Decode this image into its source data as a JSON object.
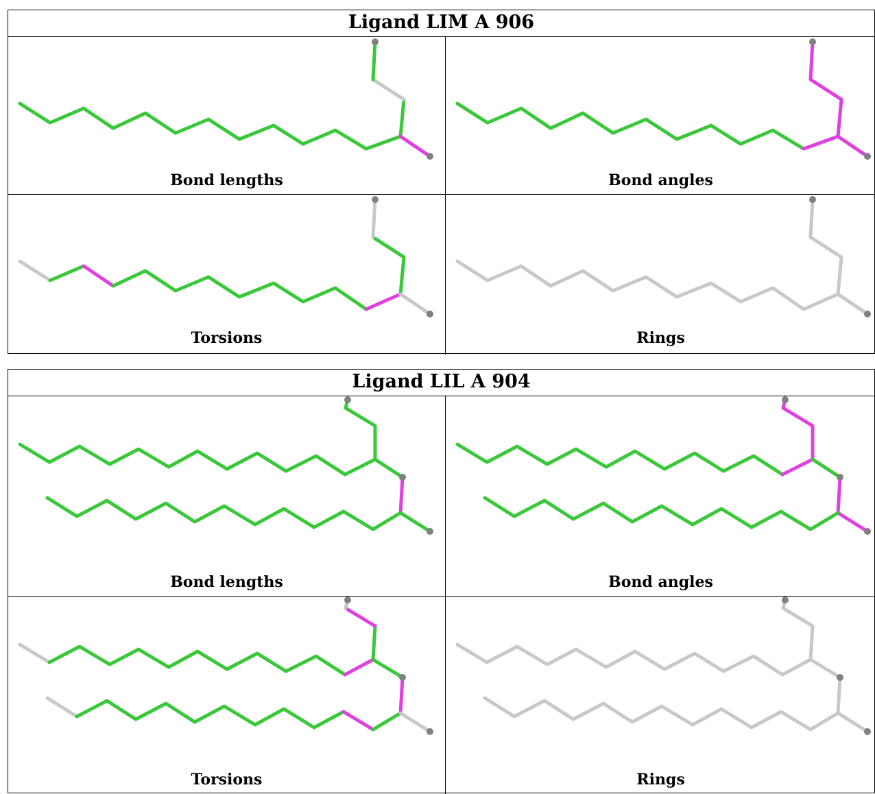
{
  "colors": {
    "ok": "#3ac83a",
    "outlier": "#e040e0",
    "none": "#c8c8c8",
    "atom": "#808080"
  },
  "ligands": [
    {
      "title": "Ligand LIM A 906",
      "panels": [
        {
          "label": "Bond lengths"
        },
        {
          "label": "Bond angles"
        },
        {
          "label": "Torsions"
        },
        {
          "label": "Rings"
        }
      ]
    },
    {
      "title": "Ligand LIL A 904",
      "panels": [
        {
          "label": "Bond lengths"
        },
        {
          "label": "Bond angles"
        },
        {
          "label": "Torsions"
        },
        {
          "label": "Rings"
        }
      ]
    }
  ]
}
